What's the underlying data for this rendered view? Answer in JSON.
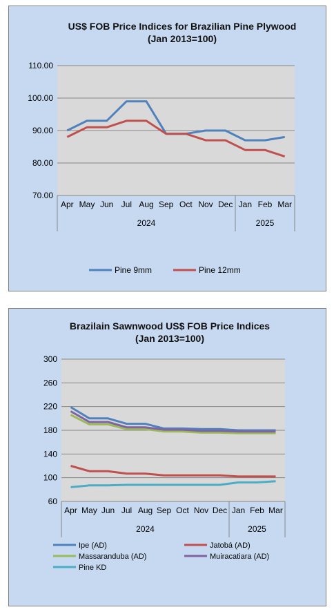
{
  "colors": {
    "panel_bg": "#c6d9f1",
    "plot_bg": "#d9d9d9",
    "grid": "#868686",
    "pine9": "#4f81bd",
    "pine12": "#c0504d",
    "ipe": "#4f81bd",
    "jatoba": "#c0504d",
    "massaranduba": "#9bbb59",
    "muiracatiara": "#8064a2",
    "pinekd": "#4bacc6"
  },
  "chart_data": [
    {
      "type": "line",
      "title": [
        "US$ FOB Price Indices for Brazilian  Pine Plywood",
        "(Jan 2013=100)"
      ],
      "categories": [
        "Apr",
        "May",
        "Jun",
        "Jul",
        "Aug",
        "Sep",
        "Oct",
        "Nov",
        "Dec",
        "Jan",
        "Feb",
        "Mar"
      ],
      "year_groups": [
        {
          "label": "2024",
          "span": 9
        },
        {
          "label": "2025",
          "span": 3
        }
      ],
      "ylim": [
        70,
        110
      ],
      "yticks": [
        "70.00",
        "80.00",
        "90.00",
        "100.00",
        "110.00"
      ],
      "grid": true,
      "legend": "bottom",
      "series": [
        {
          "name": "Pine 9mm",
          "color": "#4f81bd",
          "values": [
            90,
            93,
            93,
            99,
            99,
            89,
            89,
            90,
            90,
            87,
            87,
            88
          ]
        },
        {
          "name": "Pine 12mm",
          "color": "#c0504d",
          "values": [
            88,
            91,
            91,
            93,
            93,
            89,
            89,
            87,
            87,
            84,
            84,
            82
          ]
        }
      ]
    },
    {
      "type": "line",
      "title": [
        "Brazilain Sawnwood US$ FOB Price Indices",
        "(Jan 2013=100)"
      ],
      "categories": [
        "Apr",
        "May",
        "Jun",
        "Jul",
        "Aug",
        "Sep",
        "Oct",
        "Nov",
        "Dec",
        "Jan",
        "Feb",
        "Mar"
      ],
      "year_groups": [
        {
          "label": "2024",
          "span": 9
        },
        {
          "label": "2025",
          "span": 3
        }
      ],
      "ylim": [
        60,
        300
      ],
      "yticks": [
        "60",
        "100",
        "140",
        "180",
        "220",
        "260",
        "300"
      ],
      "grid": true,
      "legend": "bottom",
      "series": [
        {
          "name": "Ipe (AD)",
          "color": "#4f81bd",
          "values": [
            219,
            200,
            200,
            191,
            191,
            183,
            183,
            182,
            182,
            180,
            180,
            180
          ]
        },
        {
          "name": "Jatobá (AD)",
          "color": "#c0504d",
          "values": [
            120,
            111,
            111,
            107,
            107,
            104,
            104,
            104,
            104,
            102,
            102,
            102
          ]
        },
        {
          "name": "Massaranduba (AD)",
          "color": "#9bbb59",
          "values": [
            206,
            190,
            190,
            182,
            182,
            178,
            178,
            176,
            176,
            175,
            175,
            175
          ]
        },
        {
          "name": "Muiracatiara (AD)",
          "color": "#8064a2",
          "values": [
            212,
            194,
            194,
            185,
            185,
            181,
            181,
            179,
            179,
            178,
            178,
            178
          ]
        },
        {
          "name": "Pine KD",
          "color": "#4bacc6",
          "values": [
            84,
            87,
            87,
            88,
            88,
            88,
            88,
            88,
            88,
            92,
            92,
            94
          ]
        }
      ]
    }
  ]
}
